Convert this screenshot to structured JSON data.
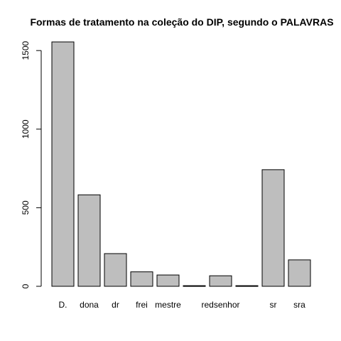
{
  "chart_data": {
    "type": "bar",
    "title": "Formas de tratamento na coleção do DIP, segundo o PALAVRAS",
    "xlabel": "",
    "ylabel": "",
    "categories": [
      "D.",
      "dona",
      "dr",
      "frei",
      "mestre",
      "",
      "redsenhor",
      "",
      "sr",
      "sra"
    ],
    "values": [
      1555,
      582,
      208,
      92,
      72,
      4,
      67,
      4,
      742,
      168
    ],
    "ylim": [
      0,
      1555
    ],
    "yticks": [
      0,
      500,
      1000,
      1500
    ],
    "grid": false,
    "legend": "none",
    "bar_fill": "#bebebe",
    "bar_stroke": "#000000"
  }
}
